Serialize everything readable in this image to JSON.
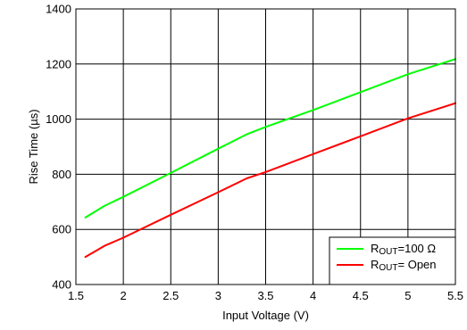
{
  "chart_data": {
    "type": "line",
    "xlabel": "Input Voltage (V)",
    "ylabel": "Rise Time (µs)",
    "xlim": [
      1.5,
      5.5
    ],
    "ylim": [
      400,
      1400
    ],
    "xticks": [
      1.5,
      2,
      2.5,
      3,
      3.5,
      4,
      4.5,
      5,
      5.5
    ],
    "xtick_labels": [
      "1.5",
      "2",
      "2.5",
      "3",
      "3.5",
      "4",
      "4.5",
      "5",
      "5.5"
    ],
    "yticks": [
      400,
      600,
      800,
      1000,
      1200,
      1400
    ],
    "ytick_labels": [
      "400",
      "600",
      "800",
      "1000",
      "1200",
      "1400"
    ],
    "grid": true,
    "legend_position": "bottom-right",
    "series": [
      {
        "legend": {
          "prefix": "R",
          "sub": "OUT",
          "suffix": "=100 Ω"
        },
        "color": "#00ff00",
        "x": [
          1.6,
          1.8,
          2.0,
          2.5,
          3.0,
          3.3,
          3.5,
          4.0,
          4.5,
          5.0,
          5.5
        ],
        "y": [
          643,
          685,
          718,
          805,
          893,
          945,
          972,
          1033,
          1098,
          1163,
          1218
        ]
      },
      {
        "legend": {
          "prefix": "R",
          "sub": "OUT",
          "suffix": "= Open"
        },
        "color": "#ff0000",
        "x": [
          1.6,
          1.8,
          2.0,
          2.5,
          3.0,
          3.3,
          3.5,
          4.0,
          4.5,
          5.0,
          5.5
        ],
        "y": [
          500,
          540,
          570,
          653,
          735,
          785,
          808,
          873,
          938,
          1003,
          1058
        ]
      }
    ]
  }
}
